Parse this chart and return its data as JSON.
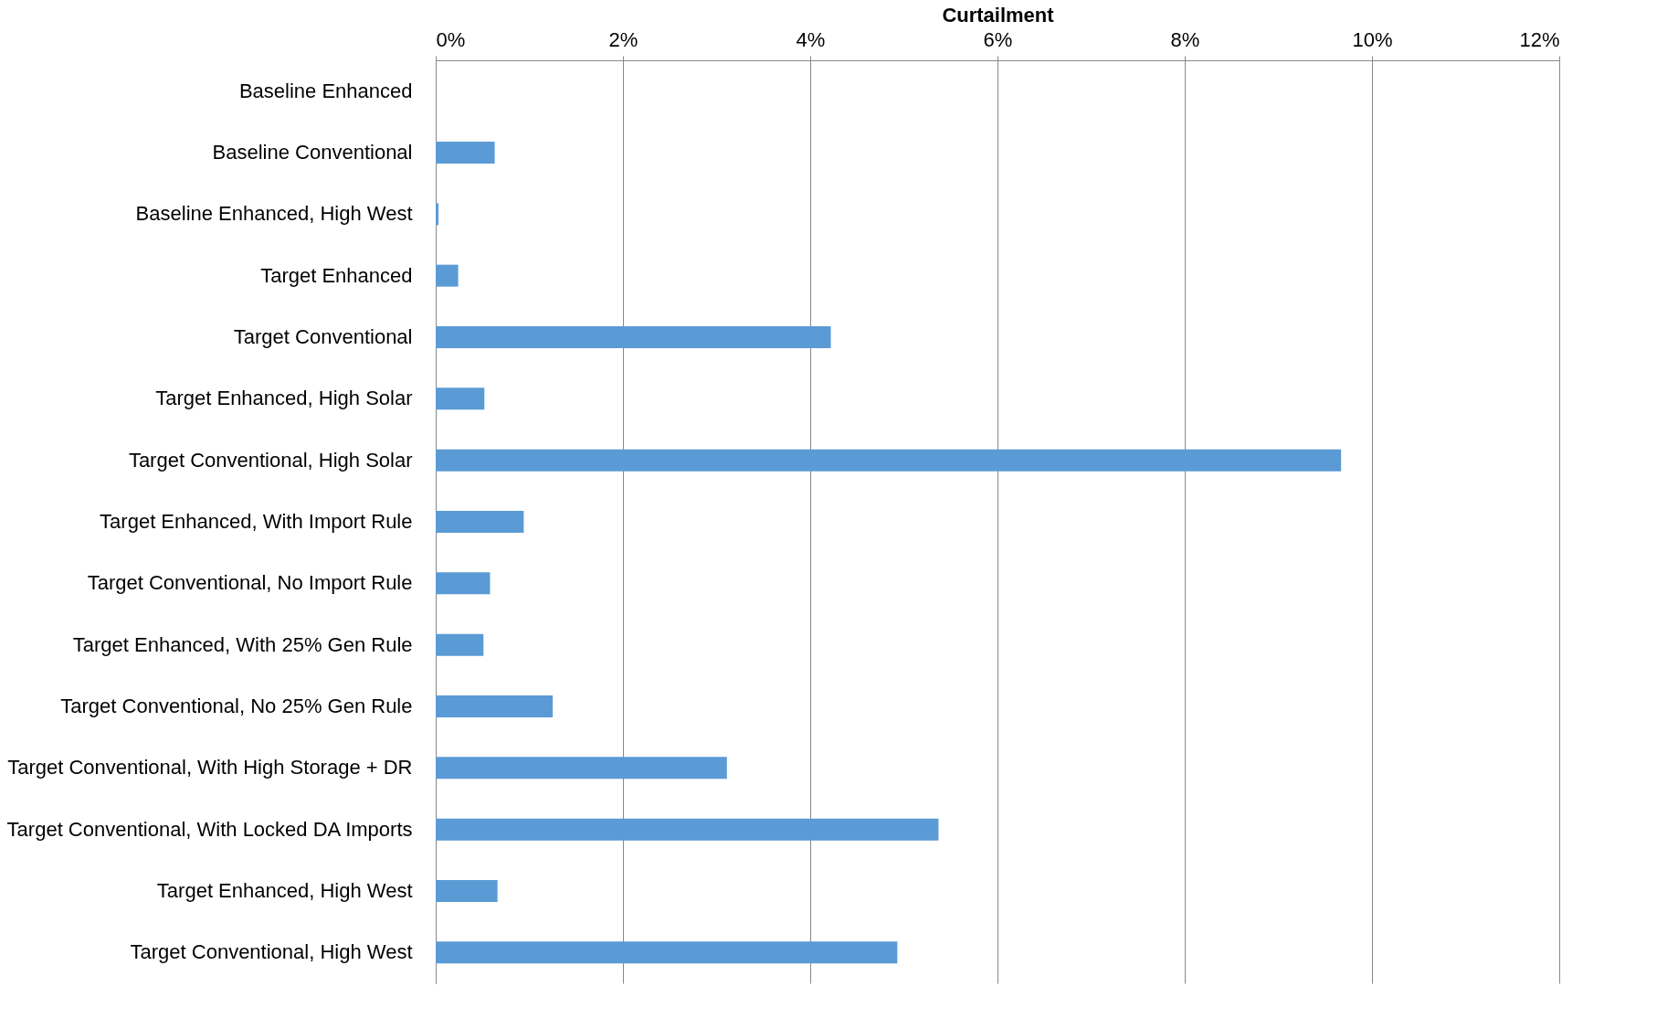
{
  "chart_data": {
    "type": "bar",
    "orientation": "horizontal",
    "xlabel": "Curtailment",
    "categories": [
      "Baseline Enhanced",
      "Baseline Conventional",
      "Baseline Enhanced, High West",
      "Target Enhanced",
      "Target Conventional",
      "Target Enhanced, High Solar",
      "Target Conventional, High Solar",
      "Target Enhanced, With Import Rule",
      "Target Conventional, No Import Rule",
      "Target Enhanced, With 25% Gen Rule",
      "Target Conventional, No 25% Gen Rule",
      "Target Conventional, With High Storage + DR",
      "Target Conventional, With Locked DA Imports",
      "Target Enhanced, High West",
      "Target Conventional, High West"
    ],
    "values": [
      0,
      0.63,
      0.03,
      0.24,
      4.22,
      0.52,
      9.67,
      0.94,
      0.58,
      0.51,
      1.25,
      3.11,
      5.37,
      0.66,
      4.93
    ],
    "color": "#5b9bd5",
    "xlim": [
      0,
      12
    ],
    "xticks": [
      {
        "value": 0,
        "label": "0%"
      },
      {
        "value": 2,
        "label": "2%"
      },
      {
        "value": 4,
        "label": "4%"
      },
      {
        "value": 6,
        "label": "6%"
      },
      {
        "value": 8,
        "label": "8%"
      },
      {
        "value": 10,
        "label": "10%"
      },
      {
        "value": 12,
        "label": "12%"
      }
    ],
    "grid": "x"
  }
}
